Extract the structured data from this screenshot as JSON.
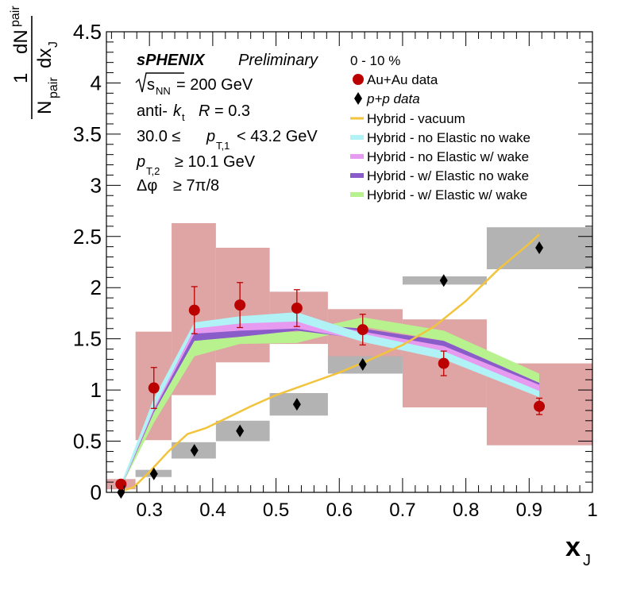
{
  "colors": {
    "auau_box": "#dfa4a4",
    "pp_box": "#b3b3b3",
    "auau_marker": "#bb0000",
    "pp_marker": "#000000",
    "vacuum": "#f2c33c",
    "no_elastic_no_wake": "#b0f2f6",
    "no_elastic_w_wake": "#e79bf0",
    "w_elastic_no_wake": "#8a5cc9",
    "w_elastic_w_wake": "#b7f28f"
  },
  "annotations": {
    "experiment": "sPHENIX",
    "status": "Preliminary",
    "energy_label": "s",
    "energy_sub": "NN",
    "energy_value": "= 200 GeV",
    "algo_prefix": "anti-",
    "algo_k": "k",
    "algo_k_sub": "t",
    "algo_r": "R",
    "algo_r_value": "= 0.3",
    "pt1_low": "30.0 ≤",
    "pt1_var": "p",
    "pt1_sub": "T,1",
    "pt1_high": "< 43.2 GeV",
    "pt2_var": "p",
    "pt2_sub": "T,2",
    "pt2_cut": "≥ 10.1 GeV",
    "dphi_var": "Δφ",
    "dphi_cut": "≥ 7π/8"
  },
  "legend": {
    "centrality": "0 - 10 %",
    "auau": "Au+Au data",
    "pp": "p+p data",
    "vacuum": "Hybrid - vacuum",
    "no_elastic_no_wake": "Hybrid - no Elastic no wake",
    "no_elastic_w_wake": "Hybrid - no Elastic w/ wake",
    "w_elastic_no_wake": "Hybrid - w/ Elastic no wake",
    "w_elastic_w_wake": "Hybrid - w/ Elastic w/ wake"
  },
  "chart_data": {
    "type": "scatter",
    "title": "",
    "xlabel": "x",
    "xlabel_sub": "J",
    "ylabel_num": "dN",
    "ylabel_num_sub": "pair",
    "ylabel_den_a": "N",
    "ylabel_den_a_sub": "pair",
    "ylabel_den_b": "dx",
    "ylabel_den_b_sub": "J",
    "ylabel_one": "1",
    "xlim": [
      0.232,
      1.0
    ],
    "ylim": [
      0,
      4.5
    ],
    "xticks": [
      "0.3",
      "0.4",
      "0.5",
      "0.6",
      "0.7",
      "0.8",
      "0.9",
      "1"
    ],
    "xtick_values": [
      0.3,
      0.4,
      0.5,
      0.6,
      0.7,
      0.8,
      0.9,
      1.0
    ],
    "yticks": [
      "0",
      "0.5",
      "1",
      "1.5",
      "2",
      "2.5",
      "3",
      "3.5",
      "4",
      "4.5"
    ],
    "ytick_values": [
      0,
      0.5,
      1,
      1.5,
      2,
      2.5,
      3,
      3.5,
      4,
      4.5
    ],
    "bins": [
      {
        "lo": 0.232,
        "hi": 0.278,
        "x": 0.255,
        "auau": 0.08,
        "auau_err": 0.0,
        "auau_sys": [
          0.03,
          0.13
        ],
        "pp": 0.0,
        "pp_sys": [
          0.0,
          0.0
        ]
      },
      {
        "lo": 0.278,
        "hi": 0.335,
        "x": 0.307,
        "auau": 1.02,
        "auau_err": 0.2,
        "auau_sys": [
          0.51,
          1.57
        ],
        "pp": 0.18,
        "pp_sys": [
          0.15,
          0.22
        ]
      },
      {
        "lo": 0.335,
        "hi": 0.405,
        "x": 0.371,
        "auau": 1.78,
        "auau_err": 0.23,
        "auau_sys": [
          0.95,
          2.63
        ],
        "pp": 0.41,
        "pp_sys": [
          0.33,
          0.49
        ]
      },
      {
        "lo": 0.405,
        "hi": 0.49,
        "x": 0.443,
        "auau": 1.83,
        "auau_err": 0.22,
        "auau_sys": [
          1.27,
          2.39
        ],
        "pp": 0.6,
        "pp_sys": [
          0.5,
          0.7
        ]
      },
      {
        "lo": 0.49,
        "hi": 0.582,
        "x": 0.533,
        "auau": 1.8,
        "auau_err": 0.18,
        "auau_sys": [
          1.45,
          1.96
        ],
        "pp": 0.86,
        "pp_sys": [
          0.75,
          0.97
        ]
      },
      {
        "lo": 0.582,
        "hi": 0.7,
        "x": 0.637,
        "auau": 1.59,
        "auau_err": 0.15,
        "auau_sys": [
          1.26,
          1.79
        ],
        "pp": 1.25,
        "pp_sys": [
          1.16,
          1.33
        ]
      },
      {
        "lo": 0.7,
        "hi": 0.833,
        "x": 0.765,
        "auau": 1.26,
        "auau_err": 0.12,
        "auau_sys": [
          0.83,
          1.69
        ],
        "pp": 2.07,
        "pp_sys": [
          2.03,
          2.11
        ]
      },
      {
        "lo": 0.833,
        "hi": 1.0,
        "x": 0.916,
        "auau": 0.84,
        "auau_err": 0.08,
        "auau_sys": [
          0.46,
          1.26
        ],
        "pp": 2.39,
        "pp_sys": [
          2.18,
          2.59
        ]
      }
    ],
    "series": [
      {
        "name": "Hybrid - w/ Elastic w/ wake",
        "key": "w_elastic_w_wake",
        "x": [
          0.255,
          0.307,
          0.371,
          0.443,
          0.533,
          0.637,
          0.765,
          0.916
        ],
        "lo": [
          0.05,
          0.68,
          1.33,
          1.45,
          1.46,
          1.62,
          1.48,
          1.07
        ],
        "hi": [
          0.08,
          0.8,
          1.48,
          1.56,
          1.57,
          1.71,
          1.58,
          1.16
        ]
      },
      {
        "name": "Hybrid - w/ Elastic no wake",
        "key": "w_elastic_no_wake",
        "x": [
          0.255,
          0.307,
          0.371,
          0.443,
          0.533,
          0.637,
          0.765,
          0.916
        ],
        "lo": [
          0.04,
          0.78,
          1.48,
          1.52,
          1.58,
          1.5,
          1.36,
          1.0
        ],
        "hi": [
          0.08,
          0.88,
          1.58,
          1.62,
          1.65,
          1.6,
          1.48,
          1.07
        ]
      },
      {
        "name": "Hybrid - no Elastic w/ wake",
        "key": "no_elastic_w_wake",
        "x": [
          0.255,
          0.307,
          0.371,
          0.443,
          0.533,
          0.637,
          0.765,
          0.916
        ],
        "lo": [
          0.04,
          0.8,
          1.55,
          1.58,
          1.6,
          1.49,
          1.34,
          0.98
        ],
        "hi": [
          0.08,
          0.9,
          1.61,
          1.66,
          1.69,
          1.57,
          1.43,
          1.05
        ]
      },
      {
        "name": "Hybrid - no Elastic no wake",
        "key": "no_elastic_no_wake",
        "x": [
          0.255,
          0.307,
          0.371,
          0.443,
          0.533,
          0.637,
          0.765,
          0.916
        ],
        "lo": [
          0.04,
          0.82,
          1.6,
          1.65,
          1.67,
          1.47,
          1.3,
          0.93
        ],
        "hi": [
          0.08,
          0.92,
          1.66,
          1.72,
          1.76,
          1.55,
          1.38,
          0.99
        ]
      },
      {
        "name": "Hybrid - vacuum",
        "key": "vacuum",
        "x": [
          0.255,
          0.275,
          0.3,
          0.33,
          0.36,
          0.39,
          0.42,
          0.46,
          0.5,
          0.55,
          0.6,
          0.65,
          0.7,
          0.75,
          0.8,
          0.85,
          0.9,
          0.916
        ],
        "y": [
          0.01,
          0.05,
          0.2,
          0.4,
          0.57,
          0.63,
          0.72,
          0.84,
          0.95,
          1.06,
          1.17,
          1.3,
          1.44,
          1.62,
          1.87,
          2.17,
          2.43,
          2.52
        ]
      }
    ]
  }
}
